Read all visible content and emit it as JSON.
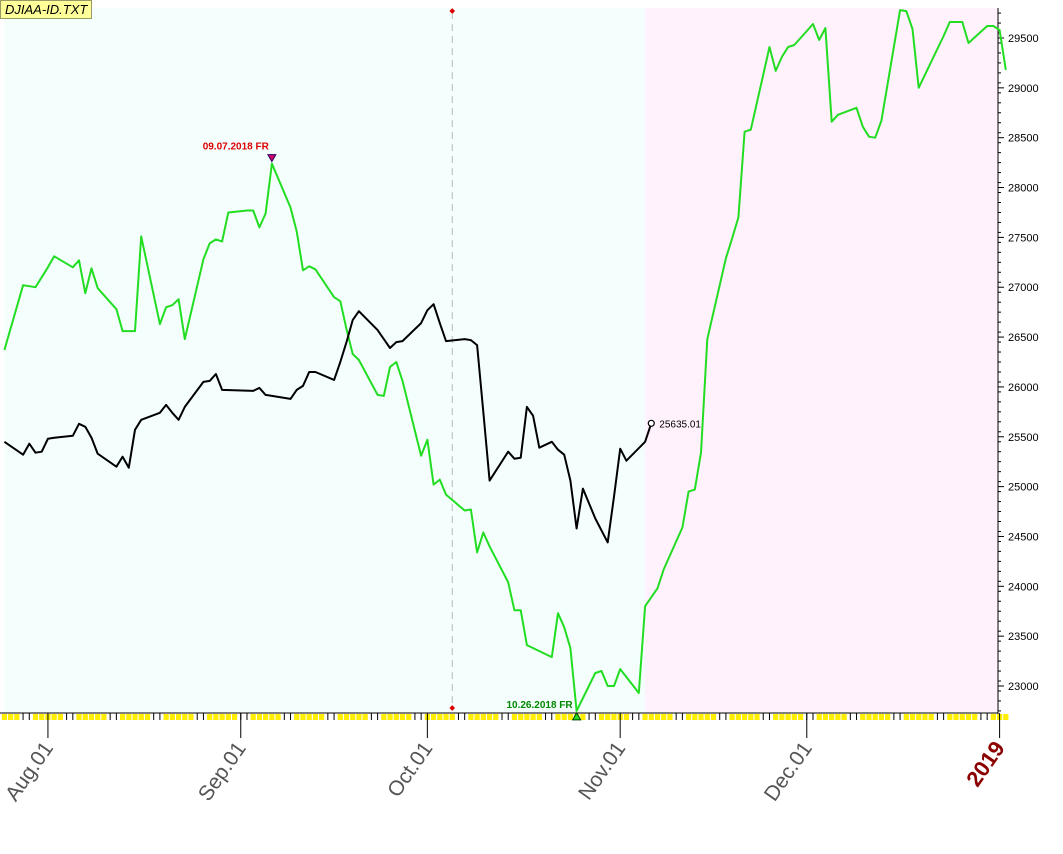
{
  "title": "DJIAA-ID.TXT",
  "chart_data": {
    "type": "line",
    "title": "DJIAA-ID.TXT",
    "x_range": [
      "2018-07-25",
      "2019-01-02"
    ],
    "y_range": [
      22700,
      29800
    ],
    "y_axis_side": "right",
    "y_ticks": [
      23000,
      23500,
      24000,
      24500,
      25000,
      25500,
      26000,
      26500,
      27000,
      27500,
      28000,
      28500,
      29000,
      29500
    ],
    "y_tick_labels": [
      "23000",
      "23500",
      "24000",
      "24500",
      "25000",
      "25500",
      "26000",
      "26500",
      "27000",
      "27500",
      "28000",
      "28500",
      "29000",
      "29500"
    ],
    "x_tick_labels": [
      {
        "date": "2018-08-01",
        "label": "Aug.01"
      },
      {
        "date": "2018-09-01",
        "label": "Sep.01"
      },
      {
        "date": "2018-10-01",
        "label": "Oct.01"
      },
      {
        "date": "2018-11-01",
        "label": "Nov.01"
      },
      {
        "date": "2018-12-01",
        "label": "Dec.01"
      },
      {
        "date": "2019-01-01",
        "label": "2019",
        "highlight": true
      }
    ],
    "regions": [
      {
        "from": "2018-07-25",
        "to": "2018-11-05",
        "color": "#f4fffd"
      },
      {
        "from": "2018-11-05",
        "to": "2019-01-02",
        "color": "#fff2fc"
      }
    ],
    "vertical_marker_date": "2018-10-05",
    "grid": false,
    "series": [
      {
        "color": "#22dd22",
        "points": [
          [
            "2018-07-25",
            26370
          ],
          [
            "2018-07-28",
            27020
          ],
          [
            "2018-07-30",
            27000
          ],
          [
            "2018-08-01",
            27200
          ],
          [
            "2018-08-02",
            27310
          ],
          [
            "2018-08-05",
            27200
          ],
          [
            "2018-08-06",
            27270
          ],
          [
            "2018-08-07",
            26940
          ],
          [
            "2018-08-08",
            27190
          ],
          [
            "2018-08-09",
            26990
          ],
          [
            "2018-08-12",
            26780
          ],
          [
            "2018-08-13",
            26560
          ],
          [
            "2018-08-15",
            26560
          ],
          [
            "2018-08-16",
            27510
          ],
          [
            "2018-08-19",
            26630
          ],
          [
            "2018-08-20",
            26800
          ],
          [
            "2018-08-21",
            26820
          ],
          [
            "2018-08-22",
            26880
          ],
          [
            "2018-08-23",
            26480
          ],
          [
            "2018-08-26",
            27280
          ],
          [
            "2018-08-27",
            27440
          ],
          [
            "2018-08-28",
            27480
          ],
          [
            "2018-08-29",
            27460
          ],
          [
            "2018-08-30",
            27750
          ],
          [
            "2018-09-02",
            27770
          ],
          [
            "2018-09-03",
            27770
          ],
          [
            "2018-09-04",
            27600
          ],
          [
            "2018-09-05",
            27740
          ],
          [
            "2018-09-06",
            28240
          ],
          [
            "2018-09-09",
            27800
          ],
          [
            "2018-09-10",
            27560
          ],
          [
            "2018-09-11",
            27170
          ],
          [
            "2018-09-12",
            27210
          ],
          [
            "2018-09-13",
            27180
          ],
          [
            "2018-09-16",
            26900
          ],
          [
            "2018-09-17",
            26860
          ],
          [
            "2018-09-18",
            26580
          ],
          [
            "2018-09-19",
            26330
          ],
          [
            "2018-09-20",
            26270
          ],
          [
            "2018-09-23",
            25920
          ],
          [
            "2018-09-24",
            25910
          ],
          [
            "2018-09-25",
            26200
          ],
          [
            "2018-09-26",
            26250
          ],
          [
            "2018-09-27",
            26060
          ],
          [
            "2018-09-30",
            25310
          ],
          [
            "2018-10-01",
            25470
          ],
          [
            "2018-10-02",
            25020
          ],
          [
            "2018-10-03",
            25070
          ],
          [
            "2018-10-04",
            24920
          ],
          [
            "2018-10-07",
            24760
          ],
          [
            "2018-10-08",
            24770
          ],
          [
            "2018-10-09",
            24340
          ],
          [
            "2018-10-10",
            24540
          ],
          [
            "2018-10-11",
            24400
          ],
          [
            "2018-10-14",
            24040
          ],
          [
            "2018-10-15",
            23760
          ],
          [
            "2018-10-16",
            23760
          ],
          [
            "2018-10-17",
            23410
          ],
          [
            "2018-10-21",
            23290
          ],
          [
            "2018-10-22",
            23730
          ],
          [
            "2018-10-23",
            23590
          ],
          [
            "2018-10-24",
            23380
          ],
          [
            "2018-10-25",
            22750
          ],
          [
            "2018-10-28",
            23130
          ],
          [
            "2018-10-29",
            23150
          ],
          [
            "2018-10-30",
            23000
          ],
          [
            "2018-10-31",
            23000
          ],
          [
            "2018-11-01",
            23170
          ],
          [
            "2018-11-04",
            22930
          ],
          [
            "2018-11-05",
            23800
          ],
          [
            "2018-11-07",
            23980
          ],
          [
            "2018-11-08",
            24170
          ],
          [
            "2018-11-11",
            24590
          ],
          [
            "2018-11-12",
            24950
          ],
          [
            "2018-11-13",
            24970
          ],
          [
            "2018-11-14",
            25340
          ],
          [
            "2018-11-15",
            26480
          ],
          [
            "2018-11-18",
            27290
          ],
          [
            "2018-11-19",
            27490
          ],
          [
            "2018-11-20",
            27700
          ],
          [
            "2018-11-21",
            28560
          ],
          [
            "2018-11-22",
            28580
          ],
          [
            "2018-11-25",
            29410
          ],
          [
            "2018-11-26",
            29170
          ],
          [
            "2018-11-27",
            29310
          ],
          [
            "2018-11-28",
            29410
          ],
          [
            "2018-11-29",
            29430
          ],
          [
            "2018-12-01",
            29570
          ],
          [
            "2018-12-02",
            29640
          ],
          [
            "2018-12-03",
            29480
          ],
          [
            "2018-12-04",
            29600
          ],
          [
            "2018-12-05",
            28660
          ],
          [
            "2018-12-06",
            28730
          ],
          [
            "2018-12-09",
            28800
          ],
          [
            "2018-12-10",
            28610
          ],
          [
            "2018-12-11",
            28510
          ],
          [
            "2018-12-12",
            28500
          ],
          [
            "2018-12-13",
            28670
          ],
          [
            "2018-12-16",
            29780
          ],
          [
            "2018-12-17",
            29770
          ],
          [
            "2018-12-18",
            29590
          ],
          [
            "2018-12-19",
            29000
          ],
          [
            "2018-12-23",
            29520
          ],
          [
            "2018-12-24",
            29660
          ],
          [
            "2018-12-26",
            29660
          ],
          [
            "2018-12-27",
            29450
          ],
          [
            "2018-12-30",
            29620
          ],
          [
            "2018-12-31",
            29620
          ],
          [
            "2019-01-01",
            29580
          ],
          [
            "2019-01-02",
            29180
          ]
        ]
      },
      {
        "color": "#000000",
        "points": [
          [
            "2018-07-25",
            25450
          ],
          [
            "2018-07-28",
            25320
          ],
          [
            "2018-07-29",
            25430
          ],
          [
            "2018-07-30",
            25340
          ],
          [
            "2018-07-31",
            25350
          ],
          [
            "2018-08-01",
            25480
          ],
          [
            "2018-08-02",
            25490
          ],
          [
            "2018-08-05",
            25510
          ],
          [
            "2018-08-06",
            25630
          ],
          [
            "2018-08-07",
            25600
          ],
          [
            "2018-08-08",
            25490
          ],
          [
            "2018-08-09",
            25330
          ],
          [
            "2018-08-12",
            25200
          ],
          [
            "2018-08-13",
            25300
          ],
          [
            "2018-08-14",
            25190
          ],
          [
            "2018-08-15",
            25570
          ],
          [
            "2018-08-16",
            25670
          ],
          [
            "2018-08-19",
            25740
          ],
          [
            "2018-08-20",
            25820
          ],
          [
            "2018-08-21",
            25740
          ],
          [
            "2018-08-22",
            25670
          ],
          [
            "2018-08-23",
            25800
          ],
          [
            "2018-08-26",
            26050
          ],
          [
            "2018-08-27",
            26060
          ],
          [
            "2018-08-28",
            26130
          ],
          [
            "2018-08-29",
            25970
          ],
          [
            "2018-09-03",
            25960
          ],
          [
            "2018-09-04",
            25990
          ],
          [
            "2018-09-05",
            25920
          ],
          [
            "2018-09-06",
            25910
          ],
          [
            "2018-09-09",
            25880
          ],
          [
            "2018-09-10",
            25970
          ],
          [
            "2018-09-11",
            26010
          ],
          [
            "2018-09-12",
            26150
          ],
          [
            "2018-09-13",
            26150
          ],
          [
            "2018-09-16",
            26070
          ],
          [
            "2018-09-17",
            26250
          ],
          [
            "2018-09-18",
            26450
          ],
          [
            "2018-09-19",
            26670
          ],
          [
            "2018-09-20",
            26760
          ],
          [
            "2018-09-23",
            26570
          ],
          [
            "2018-09-24",
            26480
          ],
          [
            "2018-09-25",
            26390
          ],
          [
            "2018-09-26",
            26450
          ],
          [
            "2018-09-27",
            26460
          ],
          [
            "2018-09-30",
            26640
          ],
          [
            "2018-10-01",
            26770
          ],
          [
            "2018-10-02",
            26830
          ],
          [
            "2018-10-03",
            26640
          ],
          [
            "2018-10-04",
            26460
          ],
          [
            "2018-10-07",
            26480
          ],
          [
            "2018-10-08",
            26470
          ],
          [
            "2018-10-09",
            26420
          ],
          [
            "2018-10-10",
            25750
          ],
          [
            "2018-10-11",
            25060
          ],
          [
            "2018-10-14",
            25350
          ],
          [
            "2018-10-15",
            25280
          ],
          [
            "2018-10-16",
            25290
          ],
          [
            "2018-10-17",
            25800
          ],
          [
            "2018-10-18",
            25710
          ],
          [
            "2018-10-19",
            25390
          ],
          [
            "2018-10-21",
            25450
          ],
          [
            "2018-10-22",
            25370
          ],
          [
            "2018-10-23",
            25320
          ],
          [
            "2018-10-24",
            25060
          ],
          [
            "2018-10-25",
            24580
          ],
          [
            "2018-10-26",
            24980
          ],
          [
            "2018-10-28",
            24680
          ],
          [
            "2018-10-30",
            24440
          ],
          [
            "2018-10-31",
            24900
          ],
          [
            "2018-11-01",
            25380
          ],
          [
            "2018-11-02",
            25260
          ],
          [
            "2018-11-05",
            25450
          ],
          [
            "2018-11-06",
            25635.01
          ]
        ]
      }
    ],
    "annotations": [
      {
        "text": "09.07.2018 FR",
        "date": "2018-09-06",
        "value": 28240,
        "color": "#dd0000",
        "kind": "peak"
      },
      {
        "text": "10.26.2018 FR",
        "date": "2018-10-25",
        "value": 22750,
        "color": "#008800",
        "kind": "trough"
      },
      {
        "text": "25635.01",
        "date": "2018-11-06",
        "value": 25635.01,
        "color": "#000000",
        "kind": "last"
      }
    ]
  }
}
